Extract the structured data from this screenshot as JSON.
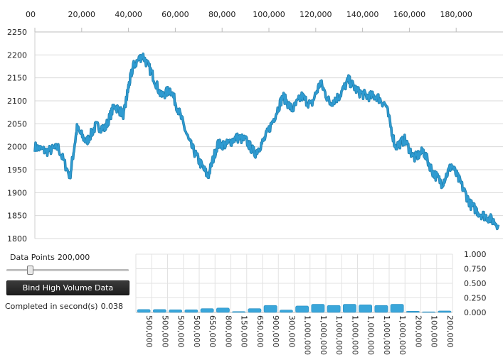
{
  "main_chart": {
    "x_ticks": [
      "00",
      "20,000",
      "40,000",
      "60,000",
      "80,000",
      "100,000",
      "120,000",
      "140,000",
      "160,000",
      "180,000"
    ],
    "y_ticks": [
      "2250",
      "2200",
      "2150",
      "2100",
      "2050",
      "2000",
      "1950",
      "1900",
      "1850",
      "1800"
    ],
    "line_color": "#2f9bd1"
  },
  "controls": {
    "data_points_label": "Data Points",
    "data_points_value": "200,000",
    "slider_fraction": 0.18,
    "bind_button_label": "Bind High Volume Data",
    "completed_label": "Completed in second(s)",
    "completed_value": "0.038"
  },
  "chart_data": [
    {
      "type": "line",
      "x": [
        0,
        5000,
        10000,
        15000,
        18000,
        22000,
        26000,
        30000,
        34000,
        38000,
        40000,
        42000,
        46000,
        50000,
        54000,
        58000,
        62000,
        66000,
        70000,
        74000,
        78000,
        82000,
        86000,
        90000,
        94000,
        98000,
        102000,
        106000,
        110000,
        114000,
        118000,
        122000,
        126000,
        130000,
        134000,
        138000,
        142000,
        146000,
        150000,
        154000,
        158000,
        162000,
        166000,
        170000,
        174000,
        178000,
        182000,
        186000,
        190000,
        194000,
        198000
      ],
      "values": [
        2000,
        1990,
        1998,
        1935,
        2040,
        2010,
        2045,
        2040,
        2090,
        2070,
        2130,
        2175,
        2200,
        2160,
        2110,
        2125,
        2070,
        2010,
        1970,
        1935,
        2005,
        2005,
        2020,
        2015,
        1985,
        2015,
        2060,
        2110,
        2080,
        2110,
        2090,
        2140,
        2095,
        2110,
        2145,
        2120,
        2110,
        2110,
        2090,
        2000,
        2015,
        1975,
        1990,
        1945,
        1920,
        1960,
        1920,
        1875,
        1855,
        1845,
        1830
      ],
      "xlim": [
        0,
        200000
      ],
      "ylim": [
        1800,
        2250
      ],
      "grid": true
    },
    {
      "type": "bar",
      "categories": [
        "500,000",
        "500,000",
        "500,000",
        "500,000",
        "650,000",
        "800,000",
        "150,000",
        "650,000",
        "900,000",
        "300,000",
        "1,000,000",
        "1,000,000",
        "1,000,000",
        "1,000,000",
        "1,000,000",
        "1,000,000",
        "1,000,000",
        "200,000",
        "100,000",
        "200,000"
      ],
      "values": [
        0.05,
        0.05,
        0.045,
        0.045,
        0.065,
        0.075,
        0.015,
        0.065,
        0.12,
        0.04,
        0.11,
        0.14,
        0.12,
        0.14,
        0.13,
        0.12,
        0.14,
        0.02,
        0.01,
        0.025
      ],
      "y_ticks": [
        "1.000",
        "0.750",
        "0.500",
        "0.250",
        "0.000"
      ],
      "ylim": [
        0,
        1
      ],
      "grid": true,
      "bar_color": "#3aa6da"
    }
  ]
}
